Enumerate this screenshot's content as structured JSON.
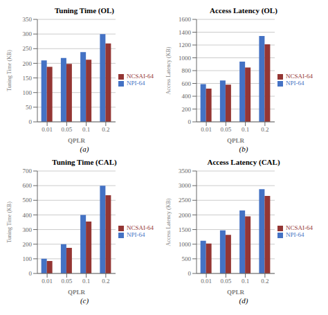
{
  "chart_data": [
    {
      "type": "bar",
      "title": "Tuning Time (OL)",
      "ylabel": "Tuning Time (KB)",
      "xlabel": "QPLR",
      "annotation": "(a)",
      "categories": [
        "0.01",
        "0.05",
        "0.1",
        "0.2"
      ],
      "series": [
        {
          "name": "NPI-64",
          "color": "#4472C4",
          "values": [
            210,
            218,
            238,
            300
          ]
        },
        {
          "name": "NCSAI-64",
          "color": "#943634",
          "values": [
            188,
            198,
            212,
            268
          ]
        }
      ],
      "ylim": [
        0,
        350
      ],
      "yticks": [
        0,
        50,
        100,
        150,
        200,
        250,
        300,
        350
      ],
      "grid": true,
      "legend": "right"
    },
    {
      "type": "bar",
      "title": "Access Latency (OL)",
      "ylabel": "Access Latency (KB)",
      "xlabel": "QPLR",
      "annotation": "(b)",
      "categories": [
        "0.01",
        "0.05",
        "0.1",
        "0.2"
      ],
      "series": [
        {
          "name": "NPI-64",
          "color": "#4472C4",
          "values": [
            590,
            645,
            940,
            1340
          ]
        },
        {
          "name": "NCSAI-64",
          "color": "#943634",
          "values": [
            520,
            580,
            850,
            1210
          ]
        }
      ],
      "ylim": [
        0,
        1600
      ],
      "yticks": [
        0,
        200,
        400,
        600,
        800,
        1000,
        1200,
        1400,
        1600
      ],
      "grid": true,
      "legend": "right"
    },
    {
      "type": "bar",
      "title": "Tuning Time (CAL)",
      "ylabel": "Tuning Time (KB)",
      "xlabel": "QPLR",
      "annotation": "(c)",
      "categories": [
        "0.01",
        "0.05",
        "0.1",
        "0.2"
      ],
      "series": [
        {
          "name": "NPI-64",
          "color": "#4472C4",
          "values": [
            100,
            200,
            400,
            600
          ]
        },
        {
          "name": "NCSAI-64",
          "color": "#943634",
          "values": [
            85,
            175,
            355,
            535
          ]
        }
      ],
      "ylim": [
        0,
        700
      ],
      "yticks": [
        0,
        100,
        200,
        300,
        400,
        500,
        600,
        700
      ],
      "grid": true,
      "legend": "right"
    },
    {
      "type": "bar",
      "title": "Access Latency (CAL)",
      "ylabel": "Access Latency (KB)",
      "xlabel": "QPLR",
      "annotation": "(d)",
      "categories": [
        "0.01",
        "0.05",
        "0.1",
        "0.2"
      ],
      "series": [
        {
          "name": "NPI-64",
          "color": "#4472C4",
          "values": [
            1120,
            1470,
            2150,
            2880
          ]
        },
        {
          "name": "NCSAI-64",
          "color": "#943634",
          "values": [
            1020,
            1320,
            1950,
            2650
          ]
        }
      ],
      "ylim": [
        0,
        3500
      ],
      "yticks": [
        0,
        500,
        1000,
        1500,
        2000,
        2500,
        3000,
        3500
      ],
      "grid": true,
      "legend": "right"
    }
  ]
}
